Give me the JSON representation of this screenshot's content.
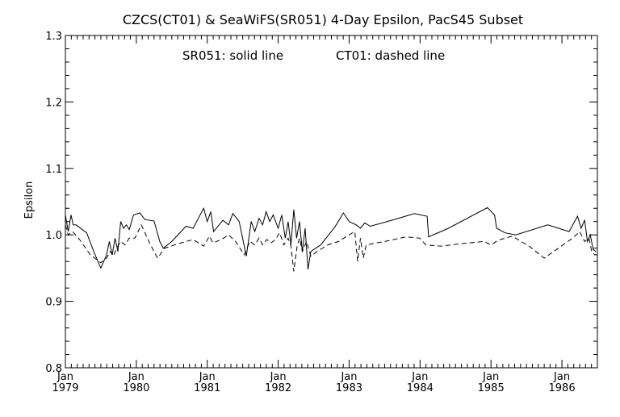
{
  "chart_data": {
    "type": "line",
    "title": "CZCS(CT01) & SeaWiFS(SR051) 4-Day Epsilon, PacS45 Subset",
    "annotation": {
      "solid": "SR051: solid line",
      "dashed": "CT01: dashed line"
    },
    "xlabel": "",
    "ylabel": "Epsilon",
    "xlim": [
      1979.0,
      1986.5
    ],
    "ylim": [
      0.8,
      1.3
    ],
    "grid": false,
    "legend": "none",
    "x_ticks": [
      {
        "month": "Jan",
        "year": "1979",
        "value": 1979
      },
      {
        "month": "Jan",
        "year": "1980",
        "value": 1980
      },
      {
        "month": "Jan",
        "year": "1981",
        "value": 1981
      },
      {
        "month": "Jan",
        "year": "1982",
        "value": 1982
      },
      {
        "month": "Jan",
        "year": "1983",
        "value": 1983
      },
      {
        "month": "Jan",
        "year": "1984",
        "value": 1984
      },
      {
        "month": "Jan",
        "year": "1985",
        "value": 1985
      },
      {
        "month": "Jan",
        "year": "1986",
        "value": 1986
      }
    ],
    "y_ticks": [
      "0.8",
      "0.9",
      "1.0",
      "1.1",
      "1.2",
      "1.3"
    ],
    "series": [
      {
        "name": "SR051",
        "style": "solid",
        "color": "#000000",
        "points": [
          [
            1979.0,
            1.03
          ],
          [
            1979.04,
            1.005
          ],
          [
            1979.08,
            1.03
          ],
          [
            1979.11,
            1.015
          ],
          [
            1979.15,
            1.015
          ],
          [
            1979.3,
            1.003
          ],
          [
            1979.4,
            0.975
          ],
          [
            1979.5,
            0.95
          ],
          [
            1979.58,
            0.97
          ],
          [
            1979.62,
            0.99
          ],
          [
            1979.66,
            0.97
          ],
          [
            1979.7,
            0.995
          ],
          [
            1979.74,
            0.975
          ],
          [
            1979.78,
            1.02
          ],
          [
            1979.82,
            1.01
          ],
          [
            1979.86,
            1.015
          ],
          [
            1979.9,
            1.008
          ],
          [
            1979.96,
            1.03
          ],
          [
            1980.05,
            1.033
          ],
          [
            1980.12,
            1.023
          ],
          [
            1980.25,
            1.021
          ],
          [
            1980.33,
            0.99
          ],
          [
            1980.38,
            0.98
          ],
          [
            1980.5,
            0.99
          ],
          [
            1980.7,
            1.013
          ],
          [
            1980.8,
            1.01
          ],
          [
            1980.95,
            1.04
          ],
          [
            1981.0,
            1.02
          ],
          [
            1981.05,
            1.035
          ],
          [
            1981.09,
            1.005
          ],
          [
            1981.22,
            1.022
          ],
          [
            1981.3,
            1.015
          ],
          [
            1981.36,
            1.032
          ],
          [
            1981.45,
            1.02
          ],
          [
            1981.55,
            0.968
          ],
          [
            1981.62,
            1.02
          ],
          [
            1981.67,
            1.005
          ],
          [
            1981.73,
            1.025
          ],
          [
            1981.78,
            1.015
          ],
          [
            1981.83,
            1.035
          ],
          [
            1981.88,
            1.02
          ],
          [
            1981.93,
            1.03
          ],
          [
            1982.0,
            1.01
          ],
          [
            1982.05,
            1.03
          ],
          [
            1982.1,
            0.995
          ],
          [
            1982.14,
            1.02
          ],
          [
            1982.18,
            0.985
          ],
          [
            1982.22,
            1.038
          ],
          [
            1982.26,
            0.995
          ],
          [
            1982.3,
            1.02
          ],
          [
            1982.34,
            0.975
          ],
          [
            1982.38,
            1.01
          ],
          [
            1982.42,
            0.948
          ],
          [
            1982.46,
            0.975
          ],
          [
            1982.6,
            0.985
          ],
          [
            1982.8,
            1.012
          ],
          [
            1982.92,
            1.033
          ],
          [
            1983.0,
            1.02
          ],
          [
            1983.1,
            1.015
          ],
          [
            1983.16,
            1.01
          ],
          [
            1983.22,
            1.018
          ],
          [
            1983.3,
            1.013
          ],
          [
            1983.6,
            1.022
          ],
          [
            1983.92,
            1.032
          ],
          [
            1984.1,
            1.028
          ],
          [
            1984.12,
            0.997
          ],
          [
            1984.4,
            1.01
          ],
          [
            1984.95,
            1.041
          ],
          [
            1985.05,
            1.03
          ],
          [
            1985.08,
            1.01
          ],
          [
            1985.2,
            1.003
          ],
          [
            1985.35,
            1.0
          ],
          [
            1985.8,
            1.015
          ],
          [
            1986.1,
            1.005
          ],
          [
            1986.22,
            1.028
          ],
          [
            1986.27,
            1.01
          ],
          [
            1986.32,
            1.022
          ],
          [
            1986.36,
            0.99
          ],
          [
            1986.4,
            1.0
          ],
          [
            1986.44,
            0.978
          ],
          [
            1986.48,
            0.975
          ]
        ]
      },
      {
        "name": "CT01",
        "style": "dashed",
        "color": "#000000",
        "points": [
          [
            1979.0,
            1.015
          ],
          [
            1979.04,
            1.0
          ],
          [
            1979.1,
            1.005
          ],
          [
            1979.2,
            0.993
          ],
          [
            1979.35,
            0.97
          ],
          [
            1979.5,
            0.958
          ],
          [
            1979.58,
            0.965
          ],
          [
            1979.63,
            0.975
          ],
          [
            1979.68,
            0.968
          ],
          [
            1979.72,
            0.98
          ],
          [
            1979.78,
            0.99
          ],
          [
            1979.84,
            0.985
          ],
          [
            1979.9,
            0.995
          ],
          [
            1979.98,
            0.995
          ],
          [
            1980.07,
            1.015
          ],
          [
            1980.2,
            0.985
          ],
          [
            1980.3,
            0.965
          ],
          [
            1980.4,
            0.98
          ],
          [
            1980.6,
            0.987
          ],
          [
            1980.8,
            0.993
          ],
          [
            1980.95,
            0.983
          ],
          [
            1981.03,
            0.998
          ],
          [
            1981.08,
            0.988
          ],
          [
            1981.2,
            0.993
          ],
          [
            1981.3,
            1.0
          ],
          [
            1981.4,
            0.99
          ],
          [
            1981.52,
            0.97
          ],
          [
            1981.6,
            0.99
          ],
          [
            1981.67,
            0.985
          ],
          [
            1981.73,
            0.995
          ],
          [
            1981.78,
            0.985
          ],
          [
            1981.84,
            0.993
          ],
          [
            1981.9,
            0.988
          ],
          [
            1981.96,
            0.993
          ],
          [
            1982.02,
            1.003
          ],
          [
            1982.08,
            0.985
          ],
          [
            1982.14,
            0.995
          ],
          [
            1982.18,
            0.983
          ],
          [
            1982.22,
            0.945
          ],
          [
            1982.27,
            0.985
          ],
          [
            1982.3,
            0.995
          ],
          [
            1982.34,
            0.975
          ],
          [
            1982.4,
            0.99
          ],
          [
            1982.46,
            0.968
          ],
          [
            1982.55,
            0.975
          ],
          [
            1982.7,
            0.985
          ],
          [
            1982.85,
            0.99
          ],
          [
            1983.0,
            1.0
          ],
          [
            1983.08,
            1.005
          ],
          [
            1983.12,
            0.96
          ],
          [
            1983.16,
            0.995
          ],
          [
            1983.2,
            0.965
          ],
          [
            1983.24,
            0.985
          ],
          [
            1983.5,
            0.99
          ],
          [
            1983.8,
            0.997
          ],
          [
            1984.0,
            0.995
          ],
          [
            1984.08,
            0.985
          ],
          [
            1984.3,
            0.983
          ],
          [
            1984.6,
            0.987
          ],
          [
            1984.9,
            0.99
          ],
          [
            1985.0,
            0.985
          ],
          [
            1985.1,
            0.992
          ],
          [
            1985.3,
            0.998
          ],
          [
            1985.55,
            0.982
          ],
          [
            1985.75,
            0.965
          ],
          [
            1985.95,
            0.98
          ],
          [
            1986.15,
            0.995
          ],
          [
            1986.25,
            1.005
          ],
          [
            1986.32,
            0.99
          ],
          [
            1986.38,
            0.995
          ],
          [
            1986.42,
            0.975
          ],
          [
            1986.46,
            0.97
          ],
          [
            1986.5,
            0.97
          ]
        ]
      }
    ]
  }
}
